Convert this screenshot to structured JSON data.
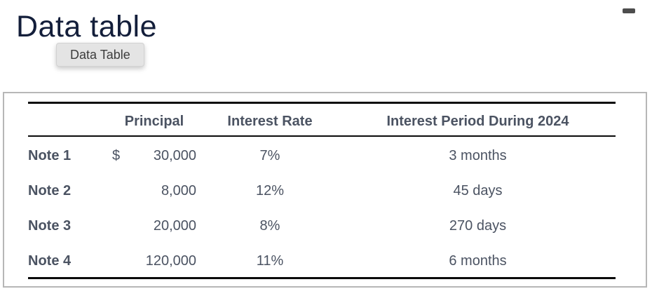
{
  "header": {
    "title": "Data table",
    "button_label": "Data Table"
  },
  "icons": {
    "top_right": "minimize-dash"
  },
  "table": {
    "headers": {
      "note": "",
      "principal": "Principal",
      "rate": "Interest Rate",
      "period": "Interest Period During 2024"
    },
    "rows": [
      {
        "note": "Note 1",
        "currency": "$",
        "principal": "30,000",
        "rate": "7%",
        "period": "3 months"
      },
      {
        "note": "Note 2",
        "currency": "",
        "principal": "8,000",
        "rate": "12%",
        "period": "45 days"
      },
      {
        "note": "Note 3",
        "currency": "",
        "principal": "20,000",
        "rate": "8%",
        "period": "270 days"
      },
      {
        "note": "Note 4",
        "currency": "",
        "principal": "120,000",
        "rate": "11%",
        "period": "6 months"
      }
    ]
  },
  "colors": {
    "title": "#131e3a",
    "table_text": "#4b5362",
    "rule": "#0a0a0a",
    "panel_border": "#b7b7b7",
    "button_bg": "#e4e4e4",
    "button_text": "#3d3d3d",
    "dash_icon": "#4d4d4d"
  }
}
